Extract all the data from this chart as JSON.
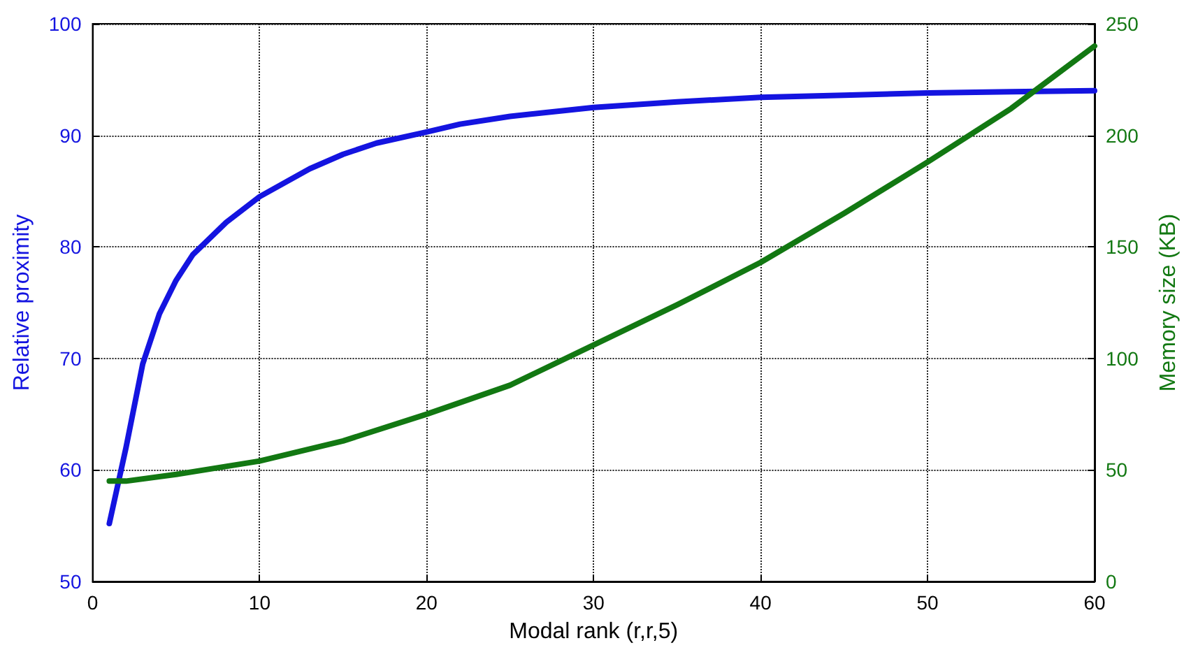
{
  "chart_data": {
    "type": "line",
    "xlabel": "Modal rank (r,r,5)",
    "ylabel": "Relative proximity",
    "y2label": "Memory size (KB)",
    "xlim": [
      0,
      60
    ],
    "xticks": [
      0,
      10,
      20,
      30,
      40,
      50,
      60
    ],
    "ylim": [
      50,
      100
    ],
    "yticks": [
      50,
      60,
      70,
      80,
      90,
      100
    ],
    "y2lim": [
      0,
      250
    ],
    "y2ticks": [
      0,
      50,
      100,
      150,
      200,
      250
    ],
    "grid": true,
    "marker": "none",
    "line_style": "solid",
    "series": [
      {
        "color": "#1414e0",
        "x": [
          1,
          2,
          3,
          4,
          5,
          6,
          8,
          10,
          13,
          15,
          17,
          20,
          22,
          25,
          30,
          35,
          40,
          45,
          50,
          55,
          60
        ],
        "values": [
          55.2,
          62,
          69.5,
          74,
          77,
          79.3,
          82.2,
          84.5,
          87,
          88.3,
          89.3,
          90.3,
          91,
          91.7,
          92.5,
          93,
          93.4,
          93.6,
          93.8,
          93.9,
          94
        ]
      },
      {
        "color": "#127812",
        "axis": "y2",
        "x": [
          1,
          2,
          5,
          10,
          15,
          20,
          25,
          30,
          35,
          40,
          45,
          50,
          55,
          60
        ],
        "values": [
          45,
          45,
          48,
          54,
          63,
          75,
          88,
          106,
          124,
          143,
          165,
          188,
          212,
          240
        ]
      }
    ]
  }
}
